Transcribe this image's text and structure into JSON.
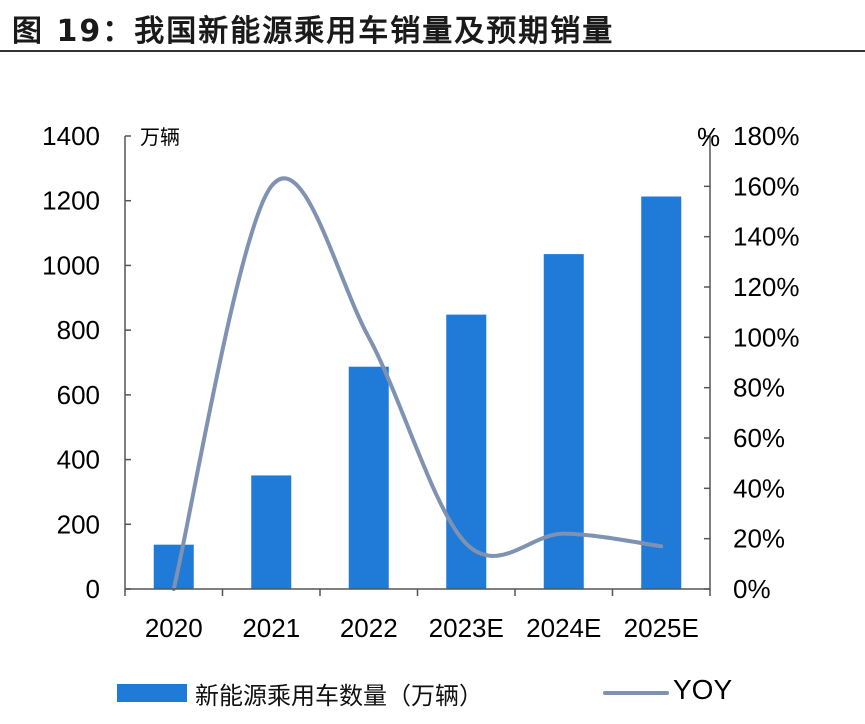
{
  "title": "图 19：我国新能源乘用车销量及预期销量",
  "chart_data": {
    "type": "bar",
    "categories": [
      "2020",
      "2021",
      "2022",
      "2023E",
      "2024E",
      "2025E"
    ],
    "series": [
      {
        "name": "新能源乘用车数量（万辆）",
        "type": "bar",
        "axis": "left",
        "color": "#1f7ad8",
        "values": [
          137,
          351,
          687,
          848,
          1035,
          1213
        ]
      },
      {
        "name": "YOY",
        "type": "line",
        "axis": "right",
        "color": "#7f92b1",
        "values": [
          0,
          160,
          100,
          18,
          22,
          17
        ]
      }
    ],
    "y_left": {
      "unit": "万辆",
      "ylim": [
        0,
        1400
      ],
      "ticks": [
        0,
        200,
        400,
        600,
        800,
        1000,
        1200,
        1400
      ]
    },
    "y_right": {
      "unit": "%",
      "ylim": [
        0,
        180
      ],
      "ticks": [
        0,
        20,
        40,
        60,
        80,
        100,
        120,
        140,
        160,
        180
      ],
      "tick_suffix": "%"
    },
    "grid": false,
    "legend": "bottom"
  }
}
